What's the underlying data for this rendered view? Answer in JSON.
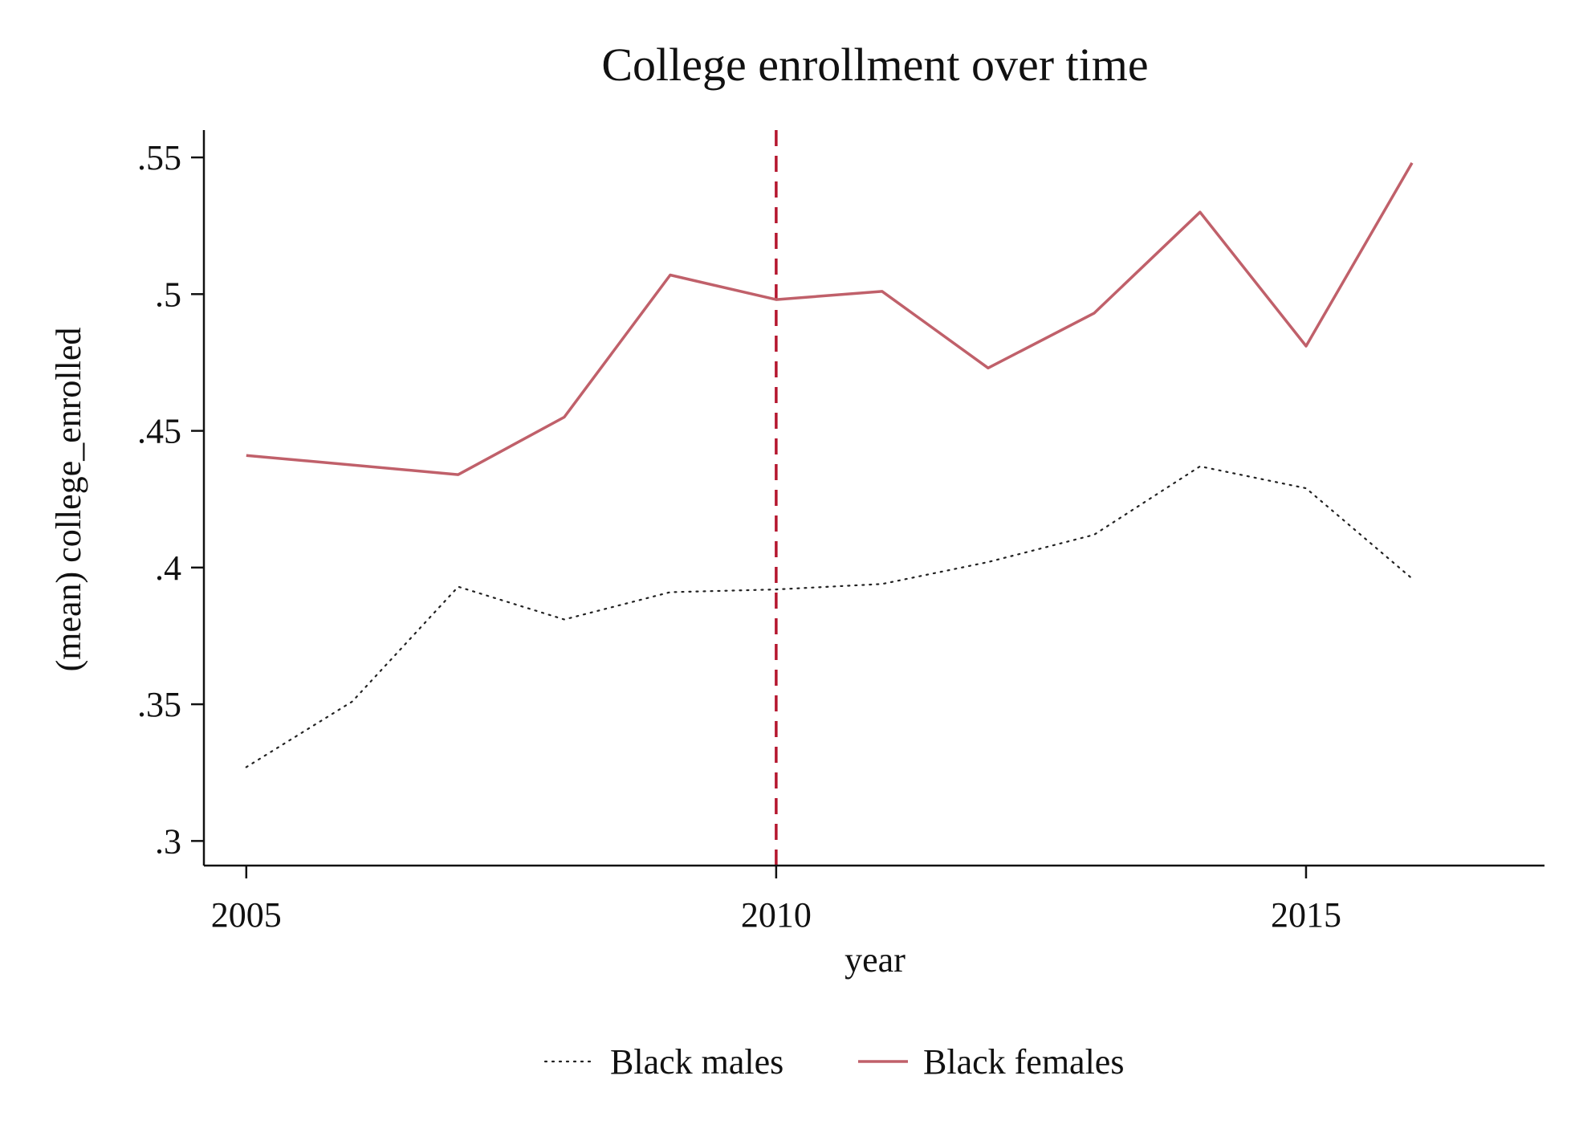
{
  "chart_data": {
    "type": "line",
    "title": "College enrollment over time",
    "xlabel": "year",
    "ylabel": "(mean) college_enrolled",
    "x": [
      2005,
      2006,
      2007,
      2008,
      2009,
      2010,
      2011,
      2012,
      2013,
      2014,
      2015,
      2016
    ],
    "xlim": [
      2004.6,
      2017.25
    ],
    "ylim": [
      0.291,
      0.56
    ],
    "xticks": [
      2005,
      2010,
      2015
    ],
    "xtick_labels": [
      "2005",
      "2010",
      "2015"
    ],
    "yticks": [
      0.3,
      0.35,
      0.4,
      0.45,
      0.5,
      0.55
    ],
    "ytick_labels": [
      ".3",
      ".35",
      ".4",
      ".45",
      ".5",
      ".55"
    ],
    "grid": false,
    "legend_position": "bottom",
    "series": [
      {
        "name": "Black males",
        "style": "dotted",
        "color": "#222222",
        "x": [
          2005,
          2006,
          2007,
          2008,
          2009,
          2010,
          2011,
          2012,
          2013,
          2014,
          2015,
          2016
        ],
        "values": [
          0.327,
          0.351,
          0.393,
          0.381,
          0.391,
          0.392,
          0.394,
          0.402,
          0.412,
          0.437,
          0.429,
          0.396
        ]
      },
      {
        "name": "Black females",
        "style": "solid",
        "color": "#c0606a",
        "x": [
          2005,
          2007,
          2008,
          2009,
          2010,
          2011,
          2012,
          2013,
          2014,
          2015,
          2016
        ],
        "values": [
          0.441,
          0.434,
          0.455,
          0.507,
          0.498,
          0.501,
          0.473,
          0.493,
          0.53,
          0.481,
          0.548
        ]
      }
    ],
    "reference_lines": [
      {
        "axis": "x",
        "value": 2010,
        "style": "dashed",
        "color": "#b5162e"
      }
    ]
  }
}
